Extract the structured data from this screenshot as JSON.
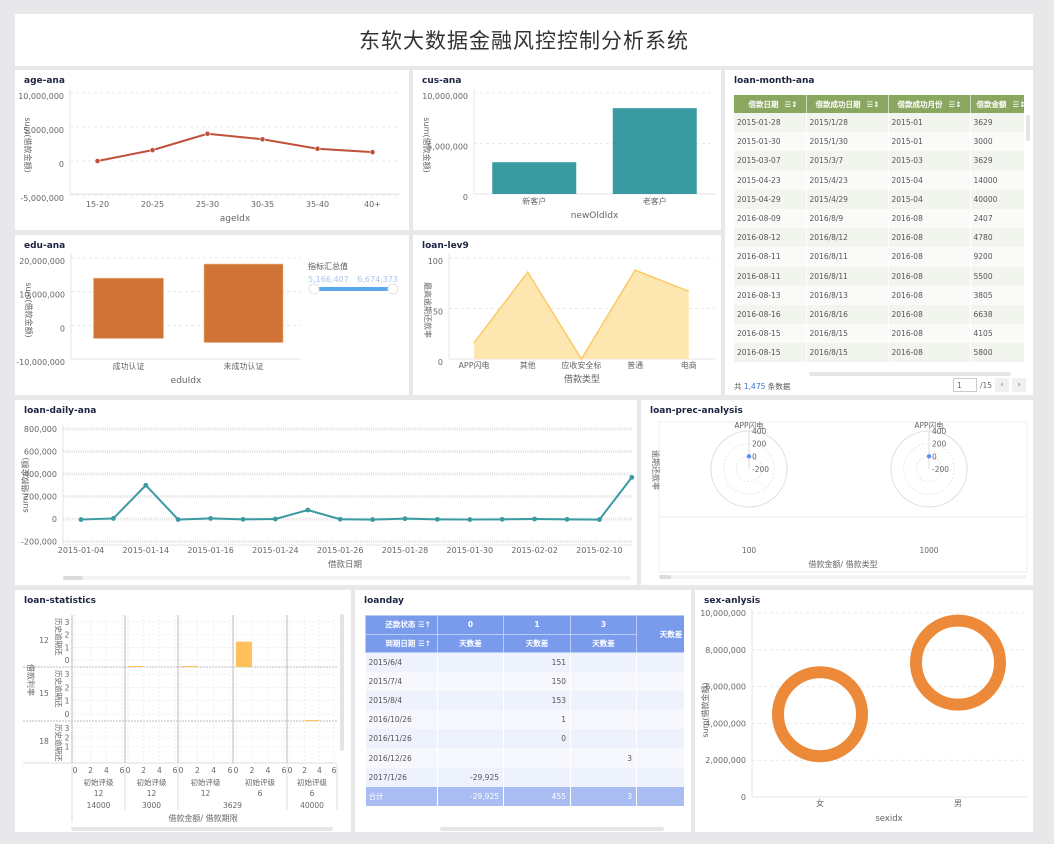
{
  "header": {
    "title": "东软大数据金融风控控制分析系统"
  },
  "colors": {
    "age_line": "#c0503a",
    "cus_bar": "#3a9aa2",
    "edu_bar": "#cf7436",
    "lev9_area": "#fde6b0",
    "lev9_line": "#fcc964",
    "daily_line": "#3a9aa2",
    "sex_ring": "#ec8a3a",
    "month_header": "#8aa760",
    "loanday_header": "#7a9bec",
    "polar_point": "#5b8ff9",
    "stat_bar": "#ffc15a"
  },
  "panels": {
    "age": {
      "title": "age-ana"
    },
    "cus": {
      "title": "cus-ana"
    },
    "month": {
      "title": "loan-month-ana"
    },
    "edu": {
      "title": "edu-ana"
    },
    "lev9": {
      "title": "loan-lev9"
    },
    "daily": {
      "title": "loan-daily-ana"
    },
    "prec": {
      "title": "loan-prec-analysis"
    },
    "stats": {
      "title": "loan-statistics"
    },
    "loanday": {
      "title": "loanday"
    },
    "sex": {
      "title": "sex-anlysis"
    }
  },
  "month_table": {
    "columns": [
      "借款日期",
      "借款成功日期",
      "借款成功月份",
      "借款金额"
    ],
    "sort_icon": "sort-icon",
    "rows": [
      [
        "2015-01-28",
        "2015/1/28",
        "2015-01",
        "3629"
      ],
      [
        "2015-01-30",
        "2015/1/30",
        "2015-01",
        "3000"
      ],
      [
        "2015-03-07",
        "2015/3/7",
        "2015-03",
        "3629"
      ],
      [
        "2015-04-23",
        "2015/4/23",
        "2015-04",
        "14000"
      ],
      [
        "2015-04-29",
        "2015/4/29",
        "2015-04",
        "40000"
      ],
      [
        "2016-08-09",
        "2016/8/9",
        "2016-08",
        "2407"
      ],
      [
        "2016-08-12",
        "2016/8/12",
        "2016-08",
        "4780"
      ],
      [
        "2016-08-11",
        "2016/8/11",
        "2016-08",
        "9200"
      ],
      [
        "2016-08-11",
        "2016/8/11",
        "2016-08",
        "5500"
      ],
      [
        "2016-08-13",
        "2016/8/13",
        "2016-08",
        "3805"
      ],
      [
        "2016-08-16",
        "2016/8/16",
        "2016-08",
        "6638"
      ],
      [
        "2016-08-15",
        "2016/8/15",
        "2016-08",
        "4105"
      ],
      [
        "2016-08-15",
        "2016/8/15",
        "2016-08",
        "5800"
      ]
    ],
    "footer": {
      "prefix": "共",
      "total": "1,475",
      "suffix": "条数据",
      "page": "1",
      "pages": "/15"
    }
  },
  "loanday_table": {
    "row_header_top": "还款状态",
    "row_header_bottom": "到期日期",
    "status_values": [
      "0",
      "1",
      "3"
    ],
    "measure": "天数差",
    "rows": [
      [
        "2015/6/4",
        "",
        "151",
        "",
        ""
      ],
      [
        "2015/7/4",
        "",
        "150",
        "",
        ""
      ],
      [
        "2015/8/4",
        "",
        "153",
        "",
        ""
      ],
      [
        "2016/10/26",
        "",
        "1",
        "",
        ""
      ],
      [
        "2016/11/26",
        "",
        "0",
        "",
        ""
      ],
      [
        "2016/12/26",
        "",
        "",
        "3",
        ""
      ],
      [
        "2017/1/26",
        "-29,925",
        "",
        "",
        "-29"
      ]
    ],
    "total": [
      "合计",
      "-29,925",
      "455",
      "3",
      "-29"
    ]
  },
  "chart_data": [
    {
      "id": "age",
      "type": "line",
      "categories": [
        "15-20",
        "20-25",
        "25-30",
        "30-35",
        "35-40",
        "40+"
      ],
      "values": [
        0,
        1600000,
        4000000,
        3200000,
        1800000,
        1300000
      ],
      "xlabel": "ageIdx",
      "ylabel": "sum(借款金额)",
      "ylim": [
        -5000000,
        10000000
      ],
      "yticks": [
        -5000000,
        0,
        5000000,
        10000000
      ],
      "grid": true
    },
    {
      "id": "cus",
      "type": "bar",
      "categories": [
        "新客户",
        "老客户"
      ],
      "values": [
        3150000,
        8500000
      ],
      "xlabel": "newOldIdx",
      "ylabel": "sum(借款金额)",
      "ylim": [
        0,
        10000000
      ],
      "yticks": [
        0,
        5000000,
        10000000
      ],
      "grid": true
    },
    {
      "id": "edu",
      "type": "bar",
      "categories": [
        "成功认证",
        "未成功认证"
      ],
      "ranges": [
        [
          -3900000,
          14000000
        ],
        [
          -5100000,
          18200000
        ]
      ],
      "xlabel": "eduIdx",
      "ylabel": "sum(借款金额)",
      "ylim": [
        -10000000,
        20000000
      ],
      "yticks": [
        -10000000,
        0,
        10000000,
        20000000
      ],
      "grid": true,
      "legend": {
        "title": "指标汇总值",
        "min": "5,166,407",
        "max": "6,674,373",
        "placement": "right"
      }
    },
    {
      "id": "lev9",
      "type": "area",
      "categories": [
        "APP闪电",
        "其他",
        "应收安全标",
        "普通",
        "电商"
      ],
      "values": [
        16,
        86,
        0,
        88,
        67
      ],
      "xlabel": "借款类型",
      "ylabel": "最高逾期还款率",
      "ylim": [
        0,
        100
      ],
      "yticks": [
        0,
        50,
        100
      ],
      "grid": true
    },
    {
      "id": "daily",
      "type": "line",
      "x_tick_labels": [
        "2015-01-04",
        "2015-01-14",
        "2015-01-16",
        "2015-01-24",
        "2015-01-26",
        "2015-01-28",
        "2015-01-30",
        "2015-02-02",
        "2015-02-10"
      ],
      "values": [
        -5000,
        5000,
        300000,
        -5000,
        5000,
        -3000,
        0,
        80000,
        -2000,
        -5000,
        3000,
        -3000,
        -5000,
        -3000,
        0,
        -3000,
        -5000,
        370000
      ],
      "xlabel": "借款日期",
      "ylabel": "sum(借款金额)",
      "ylim": [
        -200000,
        800000
      ],
      "yticks": [
        -200000,
        0,
        200000,
        400000,
        600000,
        800000
      ],
      "grid": true
    },
    {
      "id": "prec",
      "type": "polar",
      "facets": [
        "100",
        "1000"
      ],
      "angle_category": "APP闪电",
      "values": [
        0,
        0
      ],
      "rticks": [
        -200,
        0,
        200,
        400
      ],
      "xlabel": "借款金额/ 借款类型",
      "ylabel": "逾期还款率"
    },
    {
      "id": "stats",
      "type": "bar",
      "row_facets": [
        "12",
        "15",
        "18"
      ],
      "row_axis_label": "历史逾期还",
      "ylabel": "借款利率",
      "yticks": [
        0,
        1,
        2,
        3
      ],
      "xticks": [
        0,
        2,
        4,
        6
      ],
      "x_facet_label": "初始评级",
      "columns": [
        {
          "amount": "14000",
          "term": "12"
        },
        {
          "amount": "3000",
          "term": "12"
        },
        {
          "amount": "3629",
          "term": "12"
        },
        {
          "amount": "3629",
          "term": "6"
        },
        {
          "amount": "40000",
          "term": "6"
        }
      ],
      "bars": [
        {
          "col": 1,
          "row": 0,
          "x": [
            0,
            2
          ],
          "value": 0.05
        },
        {
          "col": 2,
          "row": 0,
          "x": [
            0,
            2
          ],
          "value": 0.05
        },
        {
          "col": 3,
          "row": 0,
          "x": [
            0,
            2
          ],
          "value": 2
        },
        {
          "col": 4,
          "row": 1,
          "x": [
            2,
            4
          ],
          "value": 0.05
        }
      ],
      "xlabel": "借款金额/ 借款期限"
    },
    {
      "id": "sex",
      "type": "scatter",
      "shape": "ring",
      "categories": [
        "女",
        "男"
      ],
      "values": [
        4500000,
        7300000
      ],
      "xlabel": "sexidx",
      "ylabel": "sum(借款金额)",
      "ylim": [
        0,
        10000000
      ],
      "yticks": [
        0,
        2000000,
        4000000,
        6000000,
        8000000,
        10000000
      ],
      "grid": true
    }
  ]
}
